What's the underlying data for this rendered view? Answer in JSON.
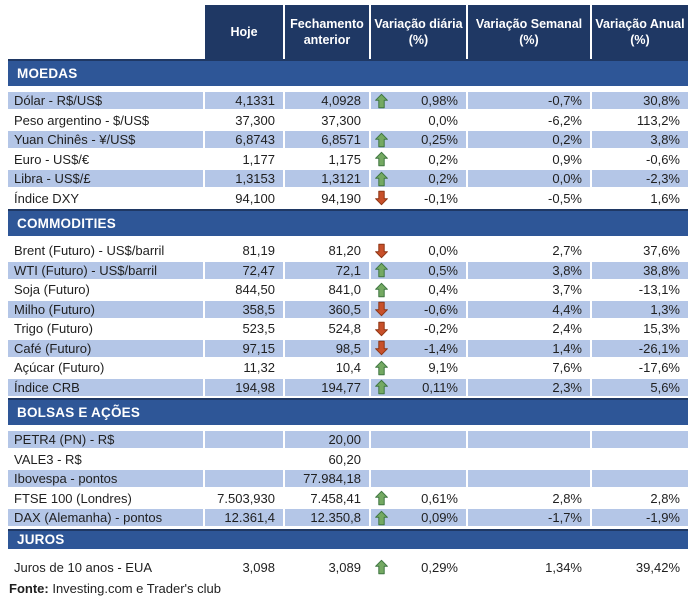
{
  "header": {
    "columns": [
      "Hoje",
      "Fechamento anterior",
      "Variação diária (%)",
      "Variação Semanal (%)",
      "Variação Anual (%)"
    ]
  },
  "sections": [
    {
      "id": "moedas",
      "title": "MOEDAS",
      "first_row_shaded": true,
      "rows": [
        {
          "label": "Dólar - R$/US$",
          "hoje": "4,1331",
          "fechamento": "4,0928",
          "arrow": "up",
          "var_diaria": "0,98%",
          "var_semanal": "-0,7%",
          "var_anual": "30,8%"
        },
        {
          "label": "Peso argentino - $/US$",
          "hoje": "37,300",
          "fechamento": "37,300",
          "arrow": "none",
          "var_diaria": "0,0%",
          "var_semanal": "-6,2%",
          "var_anual": "113,2%"
        },
        {
          "label": "Yuan Chinês - ¥/US$",
          "hoje": "6,8743",
          "fechamento": "6,8571",
          "arrow": "up",
          "var_diaria": "0,25%",
          "var_semanal": "0,2%",
          "var_anual": "3,8%"
        },
        {
          "label": "Euro - US$/€",
          "hoje": "1,177",
          "fechamento": "1,175",
          "arrow": "up",
          "var_diaria": "0,2%",
          "var_semanal": "0,9%",
          "var_anual": "-0,6%"
        },
        {
          "label": "Libra - US$/£",
          "hoje": "1,3153",
          "fechamento": "1,3121",
          "arrow": "up",
          "var_diaria": "0,2%",
          "var_semanal": "0,0%",
          "var_anual": "-2,3%"
        },
        {
          "label": "Índice DXY",
          "hoje": "94,100",
          "fechamento": "94,190",
          "arrow": "down",
          "var_diaria": "-0,1%",
          "var_semanal": "-0,5%",
          "var_anual": "1,6%"
        }
      ]
    },
    {
      "id": "commodities",
      "title": "COMMODITIES",
      "first_row_shaded": false,
      "rows": [
        {
          "label": "Brent (Futuro) - US$/barril",
          "hoje": "81,19",
          "fechamento": "81,20",
          "arrow": "down",
          "var_diaria": "0,0%",
          "var_semanal": "2,7%",
          "var_anual": "37,6%"
        },
        {
          "label": "WTI (Futuro) - US$/barril",
          "hoje": "72,47",
          "fechamento": "72,1",
          "arrow": "up",
          "var_diaria": "0,5%",
          "var_semanal": "3,8%",
          "var_anual": "38,8%"
        },
        {
          "label": "Soja (Futuro)",
          "hoje": "844,50",
          "fechamento": "841,0",
          "arrow": "up",
          "var_diaria": "0,4%",
          "var_semanal": "3,7%",
          "var_anual": "-13,1%"
        },
        {
          "label": "Milho (Futuro)",
          "hoje": "358,5",
          "fechamento": "360,5",
          "arrow": "down",
          "var_diaria": "-0,6%",
          "var_semanal": "4,4%",
          "var_anual": "1,3%"
        },
        {
          "label": "Trigo (Futuro)",
          "hoje": "523,5",
          "fechamento": "524,8",
          "arrow": "down",
          "var_diaria": "-0,2%",
          "var_semanal": "2,4%",
          "var_anual": "15,3%"
        },
        {
          "label": "Café (Futuro)",
          "hoje": "97,15",
          "fechamento": "98,5",
          "arrow": "down",
          "var_diaria": "-1,4%",
          "var_semanal": "1,4%",
          "var_anual": "-26,1%"
        },
        {
          "label": "Açúcar (Futuro)",
          "hoje": "11,32",
          "fechamento": "10,4",
          "arrow": "up",
          "var_diaria": "9,1%",
          "var_semanal": "7,6%",
          "var_anual": "-17,6%"
        },
        {
          "label": "Índice CRB",
          "hoje": "194,98",
          "fechamento": "194,77",
          "arrow": "up",
          "var_diaria": "0,11%",
          "var_semanal": "2,3%",
          "var_anual": "5,6%"
        }
      ]
    },
    {
      "id": "bolsas-e-acoes",
      "title": "BOLSAS E AÇÕES",
      "first_row_shaded": true,
      "rows": [
        {
          "label": "PETR4 (PN) - R$",
          "hoje": "",
          "fechamento": "20,00",
          "arrow": "none",
          "var_diaria": "",
          "var_semanal": "",
          "var_anual": ""
        },
        {
          "label": "VALE3 - R$",
          "hoje": "",
          "fechamento": "60,20",
          "arrow": "none",
          "var_diaria": "",
          "var_semanal": "",
          "var_anual": ""
        },
        {
          "label": "Ibovespa - pontos",
          "hoje": "",
          "fechamento": "77.984,18",
          "arrow": "none",
          "var_diaria": "",
          "var_semanal": "",
          "var_anual": ""
        },
        {
          "label": "FTSE 100 (Londres)",
          "hoje": "7.503,930",
          "fechamento": "7.458,41",
          "arrow": "up",
          "var_diaria": "0,61%",
          "var_semanal": "2,8%",
          "var_anual": "2,8%"
        },
        {
          "label": "DAX (Alemanha) - pontos",
          "hoje": "12.361,4",
          "fechamento": "12.350,8",
          "arrow": "up",
          "var_diaria": "0,09%",
          "var_semanal": "-1,7%",
          "var_anual": "-1,9%"
        }
      ]
    },
    {
      "id": "juros",
      "title": "JUROS",
      "first_row_shaded": false,
      "rows": [
        {
          "label": "Juros de 10 anos - EUA",
          "hoje": "3,098",
          "fechamento": "3,089",
          "arrow": "up",
          "var_diaria": "0,29%",
          "var_semanal": "1,34%",
          "var_anual": "39,42%"
        }
      ]
    }
  ],
  "footer": {
    "label": "Fonte:",
    "text": " Investing.com e Trader's club"
  },
  "colors": {
    "header_bg": "#1F3864",
    "section_bg": "#2E5697",
    "section_border": "#1F3864",
    "row_shaded_bg": "#B4C6E7",
    "arrow_up_fill": "#74A962",
    "arrow_up_stroke": "#3E7641",
    "arrow_down_fill": "#C8502A",
    "arrow_down_stroke": "#8E3514"
  }
}
